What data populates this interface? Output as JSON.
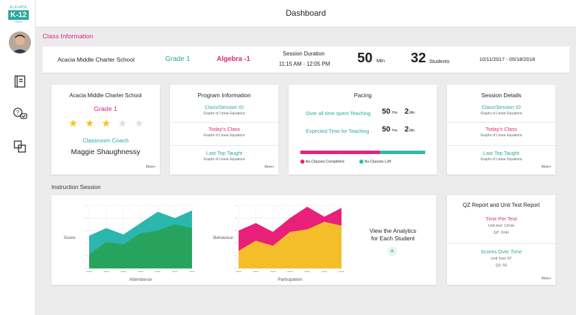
{
  "logo": {
    "top_text": "ELEVATE",
    "main_text": "K-12",
    "sub_text": "PROD"
  },
  "header": {
    "title": "Dashboard"
  },
  "class_info": {
    "section_title": "Class Information",
    "school": "Acacia Middle Charter School",
    "grade": "Grade 1",
    "subject": "Algebra -1",
    "session_label": "Session Duration",
    "session_time": "11:15 AM - 12:05 PM",
    "minutes_value": "50",
    "minutes_unit": "Min",
    "students_value": "32",
    "students_unit": "Students",
    "date_range": "10/11/2017 - 05/18/2018"
  },
  "school_card": {
    "school": "Acacia Middle Charter School",
    "grade": "Grade 1",
    "rating": 3,
    "rating_max": 5,
    "coach_label": "Classroom Coach",
    "coach_name": "Maggie Shaughnessy",
    "more": "More+"
  },
  "program_card": {
    "title": "Program Information",
    "rows": [
      {
        "label": "Class/Session ID",
        "sub": "Graphs of Linear Equations"
      },
      {
        "label": "Today's Class",
        "sub": "Graphs of Linear Equations"
      },
      {
        "label": "Last Top Taught",
        "sub": "Graphs of Linear Equations"
      }
    ],
    "more": "More+"
  },
  "pacing_card": {
    "title": "Pacing",
    "rows": [
      {
        "label": "Over all time spent Teaching",
        "hrs": "50",
        "hrs_unit": "Hrs",
        "min": "2",
        "min_unit": "Min"
      },
      {
        "label": "Expected Time for Teaching",
        "hrs": "50",
        "hrs_unit": "Hrs",
        "min": "2",
        "min_unit": "Min"
      }
    ],
    "completed_fraction": 0.64,
    "legend_completed": "No.Classes Completed",
    "legend_left": "No.Classes Left",
    "color_completed": "#e8207a",
    "color_left": "#2fb8ae"
  },
  "session_card": {
    "title": "Session Details",
    "rows": [
      {
        "label": "Class/Session ID",
        "sub": "Graphs of Linear Equations"
      },
      {
        "label": "Today's Class",
        "sub": "Graphs of Linear Equations"
      },
      {
        "label": "Last Top Taught",
        "sub": "Graphs of Linear Equations"
      }
    ],
    "more": "More+"
  },
  "instruction": {
    "section_title": "Instruction Session",
    "analytics_text_1": "View the Analytics",
    "analytics_text_2": "for Each Student",
    "plus": "+"
  },
  "chart_data": [
    {
      "type": "area",
      "xlabel": "Attendance",
      "ylabel": "Score",
      "categories": [
        "",
        "",
        "",
        "",
        "",
        "",
        ""
      ],
      "series": [
        {
          "values": [
            52,
            64,
            54,
            72,
            90,
            80,
            92
          ],
          "color": "#2bb6ae"
        },
        {
          "values": [
            22,
            42,
            38,
            56,
            60,
            70,
            64
          ],
          "color": "#27a35e"
        }
      ]
    },
    {
      "type": "area",
      "xlabel": "Participation",
      "ylabel": "Behaviour",
      "categories": [
        "",
        "",
        "",
        "",
        "",
        "",
        ""
      ],
      "series": [
        {
          "values": [
            60,
            72,
            58,
            80,
            98,
            82,
            96
          ],
          "color": "#e8207a"
        },
        {
          "values": [
            28,
            44,
            36,
            58,
            62,
            74,
            68
          ],
          "color": "#f4be2a"
        }
      ]
    }
  ],
  "qz_card": {
    "title": "QZ Report and Unit Test Report",
    "time_label": "Time Per Test",
    "time_rows": [
      "Unit test: 12min",
      "QZ: 2min"
    ],
    "scores_label": "Scores Over Time",
    "score_rows": [
      "Unit Test: 87",
      "QZ: 50"
    ],
    "more": "More+"
  },
  "colors": {
    "accent_teal": "#2aa89a",
    "accent_pink": "#d6297b",
    "star_filled": "#f2c318",
    "star_empty": "#dddddd"
  }
}
